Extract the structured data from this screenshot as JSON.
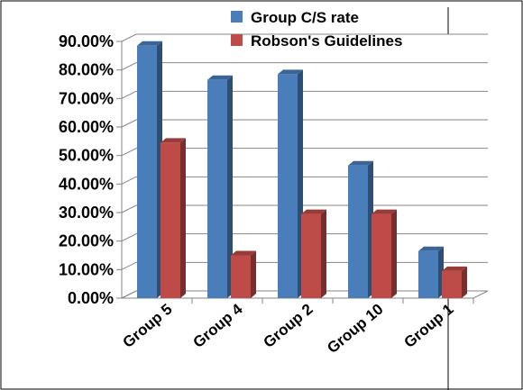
{
  "chart_data": {
    "type": "bar",
    "style": "3d-clustered-column",
    "categories": [
      "Group 5",
      "Group 4",
      "Group 2",
      "Group 10",
      "Group 1"
    ],
    "series": [
      {
        "name": "Group C/S rate",
        "values": [
          88.5,
          76.5,
          78.5,
          46.5,
          16.5
        ],
        "color": "#4a7ebb"
      },
      {
        "name": "Robson's Guidelines",
        "values": [
          54.5,
          15,
          29.5,
          29.5,
          9.5
        ],
        "color": "#be4b48"
      }
    ],
    "y_ticks": [
      "0.00%",
      "10.00%",
      "20.00%",
      "30.00%",
      "40.00%",
      "50.00%",
      "60.00%",
      "70.00%",
      "80.00%",
      "90.00%"
    ],
    "ylim": [
      0,
      90
    ],
    "grid": true,
    "legend_position": "top-right",
    "title": "",
    "xlabel": "",
    "ylabel": ""
  }
}
